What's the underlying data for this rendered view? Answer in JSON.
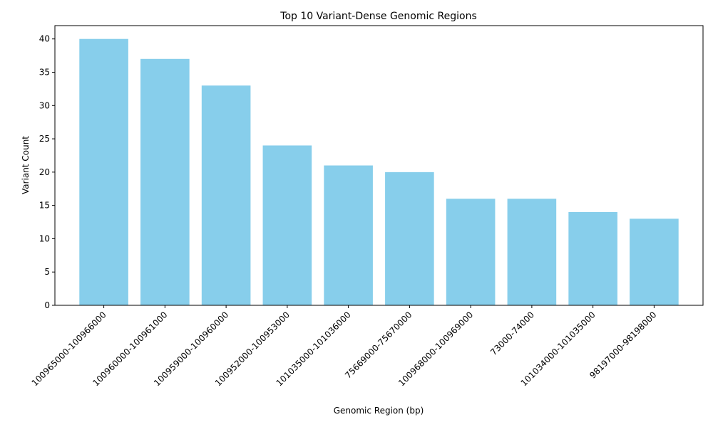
{
  "chart_data": {
    "type": "bar",
    "title": "Top 10 Variant-Dense Genomic Regions",
    "xlabel": "Genomic Region (bp)",
    "ylabel": "Variant Count",
    "categories": [
      "100965000-100966000",
      "100960000-100961000",
      "100959000-100960000",
      "100952000-100953000",
      "101035000-101036000",
      "75669000-75670000",
      "100968000-100969000",
      "73000-74000",
      "101034000-101035000",
      "98197000-98198000"
    ],
    "values": [
      40,
      37,
      33,
      24,
      21,
      20,
      16,
      16,
      14,
      13
    ],
    "ylim": [
      0,
      42
    ],
    "yticks": [
      0,
      5,
      10,
      15,
      20,
      25,
      30,
      35,
      40
    ],
    "bar_color": "#87CEEB",
    "grid": false,
    "legend": "none"
  }
}
